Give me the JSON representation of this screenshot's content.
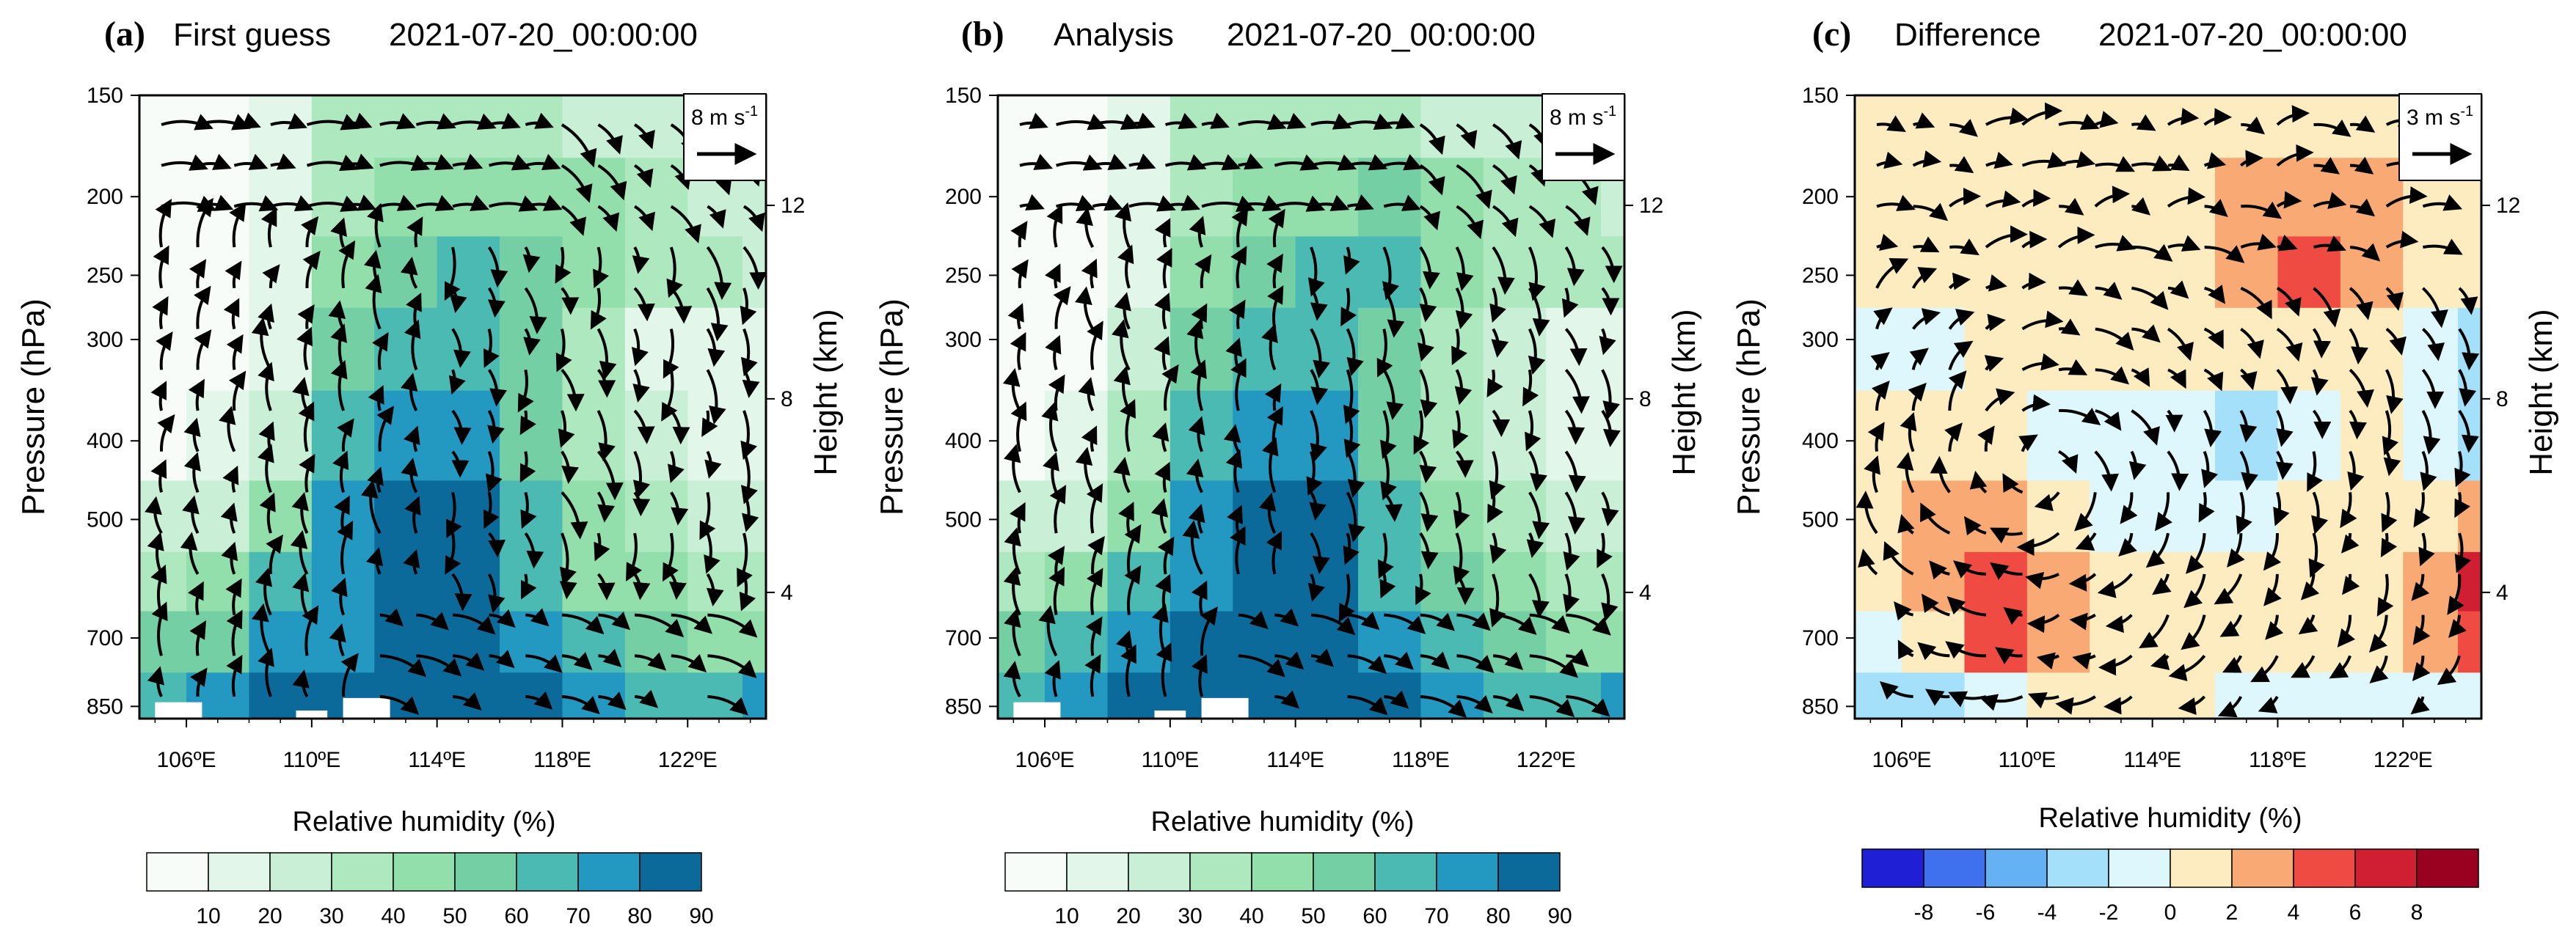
{
  "chart_data": [
    {
      "type": "heatmap",
      "panel_label": "(a)",
      "title": "First guess",
      "time": "2021-07-20_00:00:00",
      "ylabel": "Pressure (hPa)",
      "y2label": "Height (km)",
      "xlim": [
        104.5,
        124.5
      ],
      "ylim": [
        880,
        150
      ],
      "x_ticks": [
        "106ºE",
        "110ºE",
        "114ºE",
        "118ºE",
        "122ºE"
      ],
      "x_tick_values": [
        106,
        110,
        114,
        118,
        122
      ],
      "y_ticks": [
        150,
        200,
        250,
        300,
        400,
        500,
        700,
        850
      ],
      "y2_ticks": [
        {
          "value": 12,
          "at_hpa": 205
        },
        {
          "value": 8,
          "at_hpa": 355
        },
        {
          "value": 4,
          "at_hpa": 615
        }
      ],
      "shading_variable": "Relative humidity",
      "colorbar_label": "Relative humidity (%)",
      "colorbar_levels": [
        "10",
        "20",
        "30",
        "40",
        "50",
        "60",
        "70",
        "80",
        "90"
      ],
      "colorbar_colors": [
        "#f7fcf9",
        "#e2f6ea",
        "#c9efd6",
        "#aee8bf",
        "#92dfab",
        "#74cfa4",
        "#4bbab2",
        "#2398c1",
        "#0c6a9b"
      ],
      "reference_vector": {
        "label": "8 m s",
        "superscript": "-1"
      },
      "humidity_field": {
        "lon": [
          105,
          107,
          109,
          111,
          113,
          115,
          117,
          119,
          121,
          123,
          124.5
        ],
        "p": [
          850,
          700,
          600,
          500,
          400,
          300,
          250,
          200,
          160
        ],
        "rh": [
          [
            75,
            80,
            92,
            92,
            95,
            95,
            90,
            82,
            75,
            78,
            80
          ],
          [
            60,
            68,
            80,
            88,
            92,
            92,
            85,
            72,
            62,
            58,
            55
          ],
          [
            45,
            50,
            70,
            85,
            90,
            92,
            75,
            58,
            50,
            45,
            42
          ],
          [
            30,
            35,
            55,
            82,
            90,
            90,
            70,
            50,
            42,
            38,
            35
          ],
          [
            18,
            20,
            38,
            75,
            82,
            85,
            65,
            42,
            30,
            25,
            22
          ],
          [
            12,
            15,
            28,
            60,
            72,
            75,
            60,
            40,
            28,
            22,
            20
          ],
          [
            10,
            12,
            25,
            55,
            65,
            70,
            68,
            55,
            45,
            40,
            38
          ],
          [
            8,
            10,
            20,
            45,
            52,
            55,
            58,
            50,
            42,
            38,
            35
          ],
          [
            8,
            10,
            25,
            40,
            45,
            45,
            42,
            38,
            32,
            30,
            30
          ]
        ]
      }
    },
    {
      "type": "heatmap",
      "panel_label": "(b)",
      "title": "Analysis",
      "time": "2021-07-20_00:00:00",
      "ylabel": "Pressure (hPa)",
      "y2label": "Height (km)",
      "xlim": [
        104.5,
        124.5
      ],
      "ylim": [
        880,
        150
      ],
      "x_ticks": [
        "106ºE",
        "110ºE",
        "114ºE",
        "118ºE",
        "122ºE"
      ],
      "x_tick_values": [
        106,
        110,
        114,
        118,
        122
      ],
      "y_ticks": [
        150,
        200,
        250,
        300,
        400,
        500,
        700,
        850
      ],
      "y2_ticks": [
        {
          "value": 12,
          "at_hpa": 205
        },
        {
          "value": 8,
          "at_hpa": 355
        },
        {
          "value": 4,
          "at_hpa": 615
        }
      ],
      "shading_variable": "Relative humidity",
      "colorbar_label": "Relative humidity (%)",
      "colorbar_levels": [
        "10",
        "20",
        "30",
        "40",
        "50",
        "60",
        "70",
        "80",
        "90"
      ],
      "colorbar_colors": [
        "#f7fcf9",
        "#e2f6ea",
        "#c9efd6",
        "#aee8bf",
        "#92dfab",
        "#74cfa4",
        "#4bbab2",
        "#2398c1",
        "#0c6a9b"
      ],
      "reference_vector": {
        "label": "8 m s",
        "superscript": "-1"
      },
      "humidity_field": {
        "lon": [
          105,
          107,
          109,
          111,
          113,
          115,
          117,
          119,
          121,
          123,
          124.5
        ],
        "p": [
          850,
          700,
          600,
          500,
          400,
          300,
          250,
          200,
          160
        ],
        "rh": [
          [
            78,
            82,
            92,
            92,
            95,
            95,
            92,
            85,
            78,
            78,
            80
          ],
          [
            62,
            70,
            82,
            90,
            92,
            92,
            86,
            74,
            62,
            58,
            55
          ],
          [
            48,
            55,
            72,
            86,
            92,
            92,
            78,
            60,
            50,
            45,
            42
          ],
          [
            32,
            38,
            58,
            84,
            90,
            90,
            72,
            52,
            42,
            38,
            35
          ],
          [
            18,
            22,
            40,
            76,
            84,
            86,
            66,
            44,
            30,
            25,
            22
          ],
          [
            12,
            15,
            30,
            62,
            72,
            76,
            62,
            42,
            30,
            24,
            22
          ],
          [
            10,
            12,
            25,
            55,
            66,
            72,
            70,
            58,
            48,
            42,
            40
          ],
          [
            8,
            10,
            20,
            45,
            52,
            56,
            60,
            52,
            44,
            40,
            36
          ],
          [
            8,
            10,
            25,
            40,
            45,
            45,
            42,
            38,
            32,
            30,
            30
          ]
        ]
      }
    },
    {
      "type": "heatmap",
      "panel_label": "(c)",
      "title": "Difference",
      "time": "2021-07-20_00:00:00",
      "ylabel": "Pressure (hPa)",
      "y2label": "Height (km)",
      "xlim": [
        104.5,
        124.5
      ],
      "ylim": [
        880,
        150
      ],
      "x_ticks": [
        "106ºE",
        "110ºE",
        "114ºE",
        "118ºE",
        "122ºE"
      ],
      "x_tick_values": [
        106,
        110,
        114,
        118,
        122
      ],
      "y_ticks": [
        150,
        200,
        250,
        300,
        400,
        500,
        700,
        850
      ],
      "y2_ticks": [
        {
          "value": 12,
          "at_hpa": 205
        },
        {
          "value": 8,
          "at_hpa": 355
        },
        {
          "value": 4,
          "at_hpa": 615
        }
      ],
      "shading_variable": "Relative humidity difference",
      "colorbar_label": "Relative humidity (%)",
      "colorbar_levels": [
        "-8",
        "-6",
        "-4",
        "-2",
        "0",
        "2",
        "4",
        "6",
        "8"
      ],
      "colorbar_colors": [
        "#1f1fd6",
        "#3f70ee",
        "#64b1f4",
        "#a5e0fb",
        "#ddf7fc",
        "#fdecbf",
        "#f9aa74",
        "#ef4b43",
        "#d01f33",
        "#9a0020"
      ],
      "reference_vector": {
        "label": "3 m s",
        "superscript": "-1"
      },
      "humidity_field": {
        "lon": [
          105,
          107,
          109,
          111,
          113,
          115,
          117,
          119,
          121,
          123,
          124.5
        ],
        "p": [
          850,
          700,
          600,
          500,
          400,
          300,
          250,
          200,
          160
        ],
        "rh": [
          [
            -3,
            -4,
            -1,
            0,
            0,
            0,
            -2,
            -2,
            -2,
            -2,
            -1
          ],
          [
            -2,
            0,
            4,
            2,
            0,
            0,
            0,
            0,
            1,
            2,
            5
          ],
          [
            0,
            2,
            4,
            3,
            1,
            0,
            0,
            0,
            0,
            2,
            6
          ],
          [
            1,
            2,
            3,
            1,
            -1,
            -2,
            -1,
            0,
            0,
            1,
            3
          ],
          [
            0,
            0,
            0,
            -1,
            -1,
            -2,
            -3,
            -1,
            0,
            -2,
            -4
          ],
          [
            -1,
            -1,
            0,
            0,
            0,
            0,
            0,
            1,
            0,
            -1,
            -3
          ],
          [
            1,
            1,
            1,
            1,
            1,
            1,
            2,
            4,
            3,
            1,
            1
          ],
          [
            1,
            1,
            1,
            1,
            1,
            1,
            2,
            3,
            2,
            1,
            1
          ],
          [
            1,
            1,
            1,
            1,
            0,
            0,
            1,
            1,
            1,
            1,
            1
          ]
        ]
      }
    }
  ]
}
